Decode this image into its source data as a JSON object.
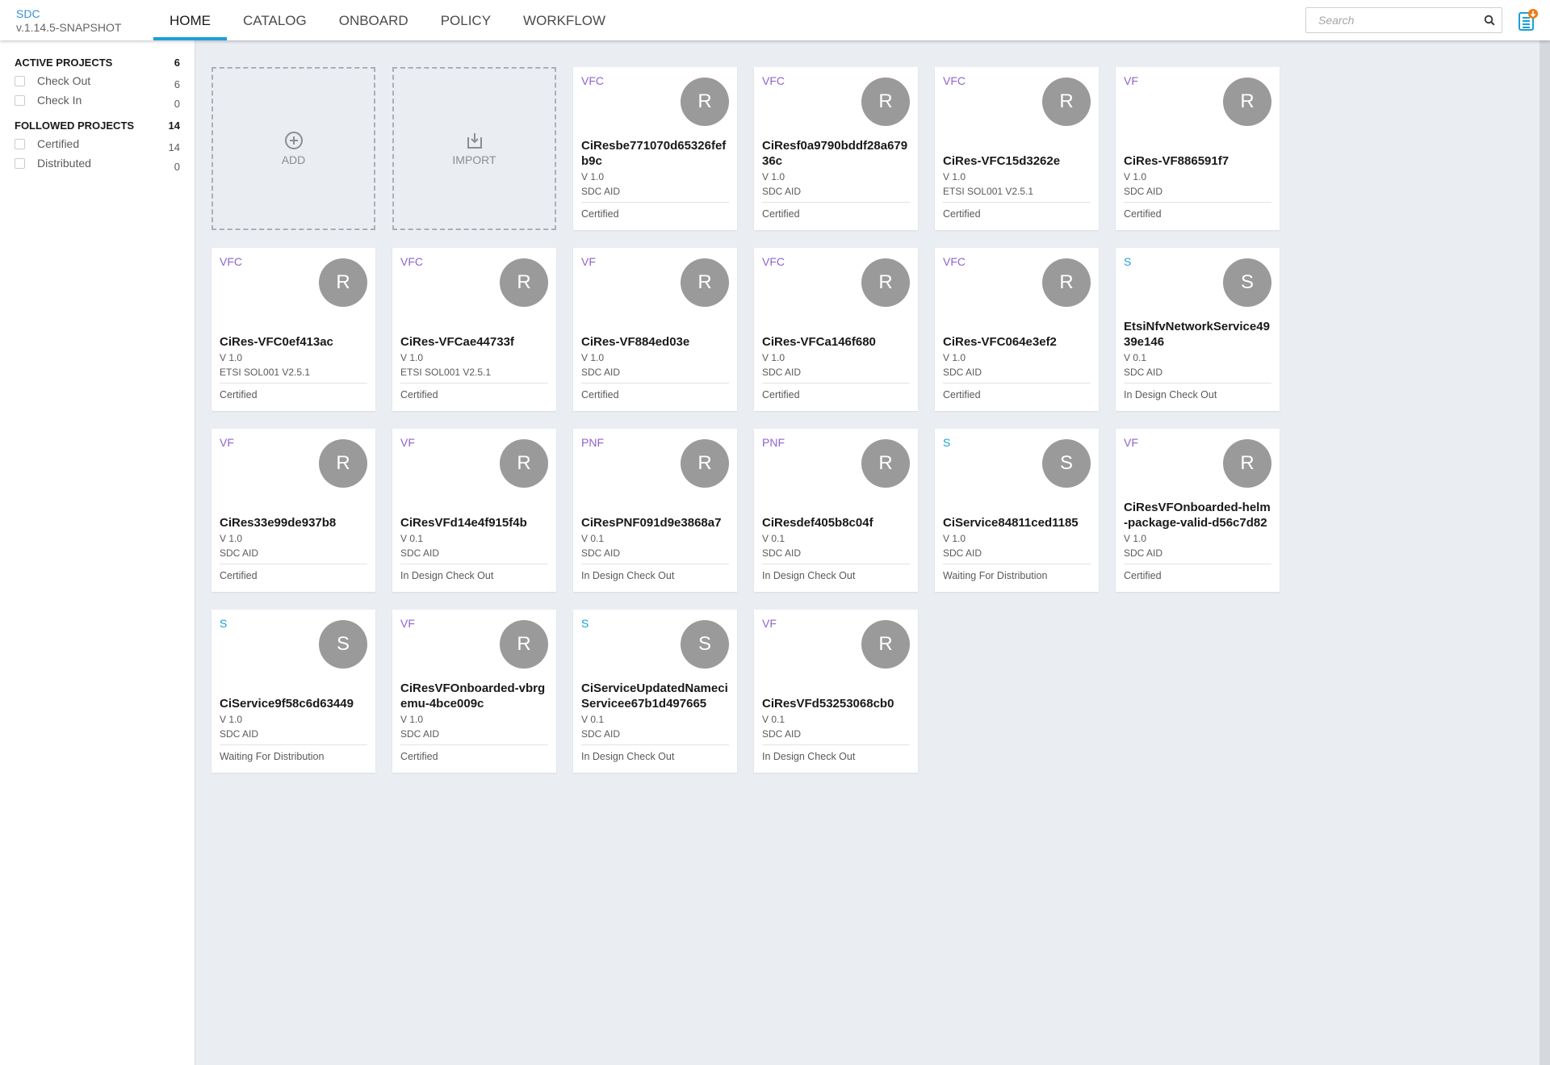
{
  "header": {
    "app": "SDC",
    "version": "v.1.14.5-SNAPSHOT",
    "tabs": [
      "HOME",
      "CATALOG",
      "ONBOARD",
      "POLICY",
      "WORKFLOW"
    ],
    "active_tab": "HOME",
    "search_placeholder": "Search"
  },
  "sidebar": {
    "active": {
      "label": "ACTIVE PROJECTS",
      "count": "6",
      "items": [
        {
          "label": "Check Out",
          "count": "6"
        },
        {
          "label": "Check In",
          "count": "0"
        }
      ]
    },
    "followed": {
      "label": "FOLLOWED PROJECTS",
      "count": "14",
      "items": [
        {
          "label": "Certified",
          "count": "14"
        },
        {
          "label": "Distributed",
          "count": "0"
        }
      ]
    }
  },
  "actions": {
    "add": "ADD",
    "import": "IMPORT"
  },
  "colors": {
    "resource": "#9063cd",
    "service": "#1ba0d8",
    "accent": "#1ba0d8",
    "badge": "#f07a12"
  },
  "cards": [
    {
      "type": "VFC",
      "icon": "R",
      "title": "CiResbe771070d65326fefb9c",
      "version": "V 1.0",
      "category": "SDC AID",
      "status": "Certified"
    },
    {
      "type": "VFC",
      "icon": "R",
      "title": "CiResf0a9790bddf28a67936c",
      "version": "V 1.0",
      "category": "SDC AID",
      "status": "Certified"
    },
    {
      "type": "VFC",
      "icon": "R",
      "title": "CiRes-VFC15d3262e",
      "version": "V 1.0",
      "category": "ETSI SOL001 V2.5.1",
      "status": "Certified"
    },
    {
      "type": "VF",
      "icon": "R",
      "title": "CiRes-VF886591f7",
      "version": "V 1.0",
      "category": "SDC AID",
      "status": "Certified"
    },
    {
      "type": "VFC",
      "icon": "R",
      "title": "CiRes-VFC0ef413ac",
      "version": "V 1.0",
      "category": "ETSI SOL001 V2.5.1",
      "status": "Certified"
    },
    {
      "type": "VFC",
      "icon": "R",
      "title": "CiRes-VFCae44733f",
      "version": "V 1.0",
      "category": "ETSI SOL001 V2.5.1",
      "status": "Certified"
    },
    {
      "type": "VF",
      "icon": "R",
      "title": "CiRes-VF884ed03e",
      "version": "V 1.0",
      "category": "SDC AID",
      "status": "Certified"
    },
    {
      "type": "VFC",
      "icon": "R",
      "title": "CiRes-VFCa146f680",
      "version": "V 1.0",
      "category": "SDC AID",
      "status": "Certified"
    },
    {
      "type": "VFC",
      "icon": "R",
      "title": "CiRes-VFC064e3ef2",
      "version": "V 1.0",
      "category": "SDC AID",
      "status": "Certified"
    },
    {
      "type": "S",
      "icon": "S",
      "title": "EtsiNfvNetworkService4939e146",
      "version": "V 0.1",
      "category": "SDC AID",
      "status": "In Design Check Out"
    },
    {
      "type": "VF",
      "icon": "R",
      "title": "CiRes33e99de937b8",
      "version": "V 1.0",
      "category": "SDC AID",
      "status": "Certified"
    },
    {
      "type": "VF",
      "icon": "R",
      "title": "CiResVFd14e4f915f4b",
      "version": "V 0.1",
      "category": "SDC AID",
      "status": "In Design Check Out"
    },
    {
      "type": "PNF",
      "icon": "R",
      "title": "CiResPNF091d9e3868a7",
      "version": "V 0.1",
      "category": "SDC AID",
      "status": "In Design Check Out"
    },
    {
      "type": "PNF",
      "icon": "R",
      "title": "CiResdef405b8c04f",
      "version": "V 0.1",
      "category": "SDC AID",
      "status": "In Design Check Out"
    },
    {
      "type": "S",
      "icon": "S",
      "title": "CiService84811ced1185",
      "version": "V 1.0",
      "category": "SDC AID",
      "status": "Waiting For Distribution"
    },
    {
      "type": "VF",
      "icon": "R",
      "title": "CiResVFOnboarded-helm-package-valid-d56c7d82",
      "version": "V 1.0",
      "category": "SDC AID",
      "status": "Certified"
    },
    {
      "type": "S",
      "icon": "S",
      "title": "CiService9f58c6d63449",
      "version": "V 1.0",
      "category": "SDC AID",
      "status": "Waiting For Distribution"
    },
    {
      "type": "VF",
      "icon": "R",
      "title": "CiResVFOnboarded-vbrgemu-4bce009c",
      "version": "V 1.0",
      "category": "SDC AID",
      "status": "Certified"
    },
    {
      "type": "S",
      "icon": "S",
      "title": "CiServiceUpdatedNameciServicee67b1d497665",
      "version": "V 0.1",
      "category": "SDC AID",
      "status": "In Design Check Out"
    },
    {
      "type": "VF",
      "icon": "R",
      "title": "CiResVFd53253068cb0",
      "version": "V 0.1",
      "category": "SDC AID",
      "status": "In Design Check Out"
    }
  ]
}
